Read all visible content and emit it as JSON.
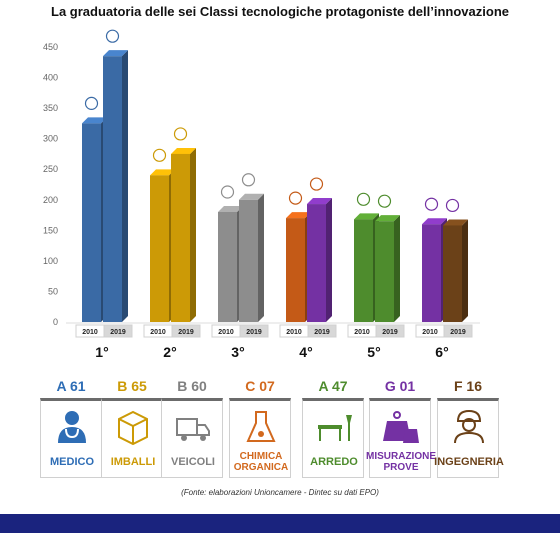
{
  "chart_data": {
    "type": "bar",
    "title": "La graduatoria delle sei Classi tecnologiche protagoniste dell’innovazione",
    "ylim": [
      0,
      450
    ],
    "yticks": [
      0,
      50,
      100,
      150,
      200,
      250,
      300,
      350,
      400,
      450
    ],
    "series_years": [
      "2010",
      "2019"
    ],
    "grid": false,
    "groups": [
      {
        "rank": "1°",
        "values": [
          325,
          435
        ],
        "colors": [
          "#3a6aa5",
          "#3a6aa5"
        ]
      },
      {
        "rank": "2°",
        "values": [
          240,
          275
        ],
        "colors": [
          "#cc9a06",
          "#cc9a06"
        ]
      },
      {
        "rank": "3°",
        "values": [
          180,
          200
        ],
        "colors": [
          "#8d8d8d",
          "#8d8d8d"
        ]
      },
      {
        "rank": "4°",
        "values": [
          170,
          193
        ],
        "colors": [
          "#c45a17",
          "#7431a3"
        ]
      },
      {
        "rank": "5°",
        "values": [
          168,
          165
        ],
        "colors": [
          "#4e8c2d",
          "#4e8c2d"
        ]
      },
      {
        "rank": "6°",
        "values": [
          160,
          158
        ],
        "colors": [
          "#7431a3",
          "#6b4118"
        ]
      }
    ]
  },
  "classes": [
    {
      "code": "A 61",
      "name_lines": [
        "MEDICO"
      ],
      "color": "#2e6db5",
      "icon": "doctor-icon"
    },
    {
      "code": "B 65",
      "name_lines": [
        "IMBALLI"
      ],
      "color": "#cc9a06",
      "icon": "package-icon"
    },
    {
      "code": "B 60",
      "name_lines": [
        "VEICOLI"
      ],
      "color": "#808080",
      "icon": "truck-icon"
    },
    {
      "code": "C 07",
      "name_lines": [
        "CHIMICA",
        "ORGANICA"
      ],
      "color": "#d2691e",
      "icon": "flask-icon"
    },
    {
      "code": "A 47",
      "name_lines": [
        "ARREDO"
      ],
      "color": "#4e8c2d",
      "icon": "furniture-icon"
    },
    {
      "code": "G 01",
      "name_lines": [
        "MISURAZIONE",
        "PROVE"
      ],
      "color": "#7431a3",
      "icon": "weight-icon"
    },
    {
      "code": "F 16",
      "name_lines": [
        "INGEGNERIA"
      ],
      "color": "#6b4118",
      "icon": "engineer-icon"
    }
  ],
  "source": "(Fonte: elaborazioni Unioncamere - Dintec su dati EPO)"
}
